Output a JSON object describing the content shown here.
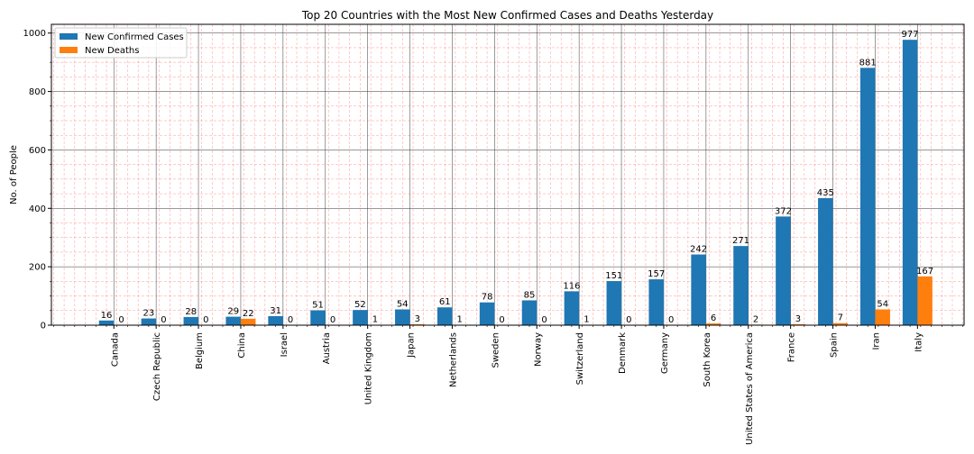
{
  "chart_data": {
    "type": "bar",
    "title": "Top 20 Countries with the Most New Confirmed Cases and Deaths Yesterday",
    "xlabel": "",
    "ylabel": "No. of People",
    "ylim": [
      0,
      1030
    ],
    "yticks": [
      0,
      200,
      400,
      600,
      800,
      1000
    ],
    "grid": "major solid dark, minor dashed red",
    "legend": "top-left",
    "categories": [
      "Canada",
      "Czech Republic",
      "Belgium",
      "China",
      "Israel",
      "Austria",
      "United Kingdom",
      "Japan",
      "Netherlands",
      "Sweden",
      "Norway",
      "Switzerland",
      "Denmark",
      "Germany",
      "South Korea",
      "United States of America",
      "France",
      "Spain",
      "Iran",
      "Italy"
    ],
    "series": [
      {
        "name": "New Confirmed Cases",
        "color": "#1f77b4",
        "values": [
          16,
          23,
          28,
          29,
          31,
          51,
          52,
          54,
          61,
          78,
          85,
          116,
          151,
          157,
          242,
          271,
          372,
          435,
          881,
          977
        ]
      },
      {
        "name": "New Deaths",
        "color": "#ff7f0e",
        "values": [
          0,
          0,
          0,
          22,
          0,
          0,
          1,
          3,
          1,
          0,
          0,
          1,
          0,
          0,
          6,
          2,
          3,
          7,
          54,
          167
        ]
      }
    ]
  }
}
